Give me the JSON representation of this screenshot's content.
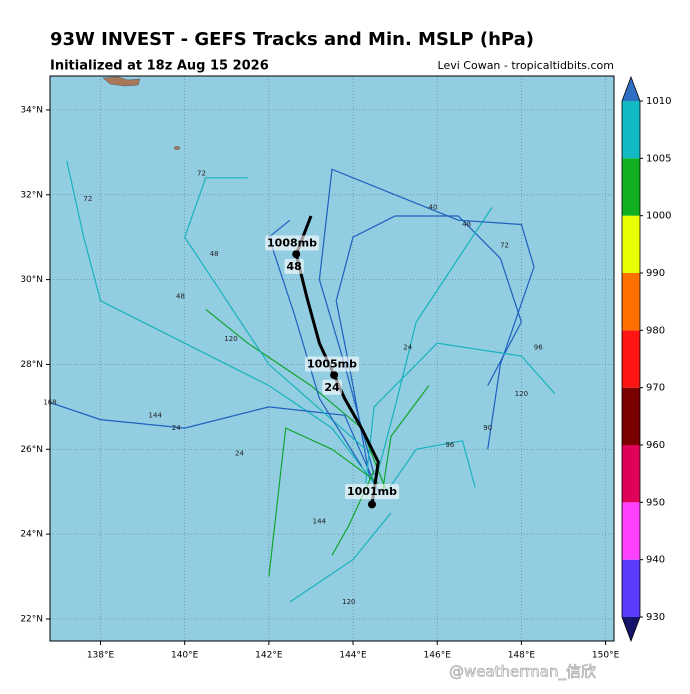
{
  "chart_data": {
    "type": "map",
    "title": "93W INVEST - GEFS Tracks and Min. MSLP (hPa)",
    "subtitle": "Initialized at 18z Aug 15 2026",
    "credit": "Levi Cowan - tropicaltidbits.com",
    "watermark": "@weatherman_信欣",
    "xlim": [
      136.8,
      150.2
    ],
    "ylim": [
      21.48,
      34.8
    ],
    "xticks": [
      {
        "value": 138,
        "label": "138°E"
      },
      {
        "value": 140,
        "label": "140°E"
      },
      {
        "value": 142,
        "label": "142°E"
      },
      {
        "value": 144,
        "label": "144°E"
      },
      {
        "value": 146,
        "label": "146°E"
      },
      {
        "value": 148,
        "label": "148°E"
      },
      {
        "value": 150,
        "label": "150°E"
      }
    ],
    "yticks": [
      {
        "value": 22,
        "label": "22°N"
      },
      {
        "value": 24,
        "label": "24°N"
      },
      {
        "value": 26,
        "label": "26°N"
      },
      {
        "value": 28,
        "label": "28°N"
      },
      {
        "value": 30,
        "label": "30°N"
      },
      {
        "value": 32,
        "label": "32°N"
      },
      {
        "value": 34,
        "label": "34°N"
      }
    ],
    "grid": true,
    "colorbar": {
      "levels": [
        930,
        940,
        950,
        960,
        970,
        980,
        990,
        1000,
        1005,
        1010
      ],
      "colors": [
        "#5a3cff",
        "#ff40ff",
        "#e0005a",
        "#7a0000",
        "#ff1414",
        "#ff7000",
        "#e8ff00",
        "#10b020",
        "#12b8c2"
      ],
      "under_color": "#141468",
      "over_color": "#2f6fc4"
    },
    "tracks": [
      {
        "color": "#17b3bf",
        "lon": [
          144.5,
          143.5,
          142,
          140,
          138,
          137.6,
          137.2
        ],
        "lat": [
          25.2,
          26.5,
          27.5,
          28.5,
          29.5,
          31,
          32.8
        ]
      },
      {
        "color": "#1f5fbf",
        "lon": [
          144.6,
          143.8,
          142,
          140,
          138,
          136.8
        ],
        "lat": [
          25,
          26.8,
          27,
          26.5,
          26.7,
          27.1
        ]
      },
      {
        "color": "#1f5fbf",
        "lon": [
          144.4,
          144,
          143.6,
          144,
          145,
          146.5,
          147.5,
          148,
          147.2
        ],
        "lat": [
          25.3,
          27.5,
          29.5,
          31,
          31.5,
          31.5,
          30.5,
          29,
          27.5
        ]
      },
      {
        "color": "#17b3bf",
        "lon": [
          144.6,
          145,
          145.5,
          147.3
        ],
        "lat": [
          25.5,
          27,
          29,
          31.7
        ]
      },
      {
        "color": "#1f5fbf",
        "lon": [
          144.5,
          143.8,
          143.2,
          143.5,
          145,
          146.5,
          148,
          148.3,
          147.5,
          147.2
        ],
        "lat": [
          25.4,
          28,
          30,
          32.6,
          32,
          31.4,
          31.3,
          30.3,
          28,
          26
        ]
      },
      {
        "color": "#17b3bf",
        "lon": [
          144.3,
          144.5,
          146,
          148,
          148.8
        ],
        "lat": [
          25.2,
          27,
          28.5,
          28.2,
          27.3
        ]
      },
      {
        "color": "#10a530",
        "lon": [
          144.8,
          144.2,
          143,
          141.5,
          140.5
        ],
        "lat": [
          25,
          26.5,
          27.5,
          28.5,
          29.3
        ]
      },
      {
        "color": "#10a530",
        "lon": [
          144.6,
          143.5,
          142.4,
          142
        ],
        "lat": [
          25.2,
          26,
          26.5,
          23
        ]
      },
      {
        "color": "#10a530",
        "lon": [
          144.7,
          144.9,
          145.8
        ],
        "lat": [
          25,
          26.3,
          27.5
        ]
      },
      {
        "color": "#17b3bf",
        "lon": [
          144.9,
          144,
          142.5
        ],
        "lat": [
          24.5,
          23.4,
          22.4
        ]
      },
      {
        "color": "#17b3bf",
        "lon": [
          144.3,
          142,
          141,
          140,
          140.5,
          141.5
        ],
        "lat": [
          26,
          28,
          29.5,
          31,
          32.4,
          32.4
        ]
      },
      {
        "color": "#10a530",
        "lon": [
          144.5,
          143.9,
          143.5
        ],
        "lat": [
          25.5,
          24.2,
          23.5
        ]
      },
      {
        "color": "#17b3bf",
        "lon": [
          144.8,
          145.5,
          146.6,
          146.9
        ],
        "lat": [
          25,
          26,
          26.2,
          25.1
        ]
      },
      {
        "color": "#1f5fbf",
        "lon": [
          144.2,
          143.2,
          142.6,
          142,
          142.5
        ],
        "lat": [
          25.6,
          27.2,
          29.2,
          31,
          31.4
        ]
      }
    ],
    "mean_track": {
      "color": "#000000",
      "lon": [
        144.45,
        144.6,
        144.2,
        143.8,
        143.55,
        143.2,
        142.9,
        142.65,
        143.0
      ],
      "lat": [
        24.7,
        25.7,
        26.5,
        27.2,
        27.75,
        28.5,
        29.6,
        30.6,
        31.5
      ]
    },
    "mean_labels": [
      {
        "text": "1001mb",
        "lon": 144.45,
        "lat": 24.99
      },
      {
        "text": "1005mb",
        "lon": 143.5,
        "lat": 28.0
      },
      {
        "text": "24",
        "lon": 143.5,
        "lat": 27.45
      },
      {
        "text": "1008mb",
        "lon": 142.55,
        "lat": 30.85
      },
      {
        "text": "48",
        "lon": 142.6,
        "lat": 30.3
      }
    ],
    "annotations": [
      {
        "text": "72",
        "lon": 137.7,
        "lat": 31.9
      },
      {
        "text": "72",
        "lon": 140.4,
        "lat": 32.5
      },
      {
        "text": "168",
        "lon": 136.8,
        "lat": 27.1
      },
      {
        "text": "144",
        "lon": 139.3,
        "lat": 26.8
      },
      {
        "text": "120",
        "lon": 141.1,
        "lat": 28.6
      },
      {
        "text": "96",
        "lon": 148.4,
        "lat": 28.4
      },
      {
        "text": "120",
        "lon": 148,
        "lat": 27.3
      },
      {
        "text": "120",
        "lon": 143.9,
        "lat": 22.4
      },
      {
        "text": "144",
        "lon": 143.2,
        "lat": 24.3
      },
      {
        "text": "72",
        "lon": 147.6,
        "lat": 30.8
      },
      {
        "text": "48",
        "lon": 146.7,
        "lat": 31.3
      },
      {
        "text": "40",
        "lon": 145.9,
        "lat": 31.7
      },
      {
        "text": "24",
        "lon": 145.3,
        "lat": 28.4
      },
      {
        "text": "24",
        "lon": 139.8,
        "lat": 26.5
      },
      {
        "text": "24",
        "lon": 141.3,
        "lat": 25.9
      },
      {
        "text": "96",
        "lon": 146.3,
        "lat": 26.1
      },
      {
        "text": "90",
        "lon": 147.2,
        "lat": 26.5
      },
      {
        "text": "48",
        "lon": 140.7,
        "lat": 30.6
      },
      {
        "text": "48",
        "lon": 139.9,
        "lat": 29.6
      }
    ]
  }
}
